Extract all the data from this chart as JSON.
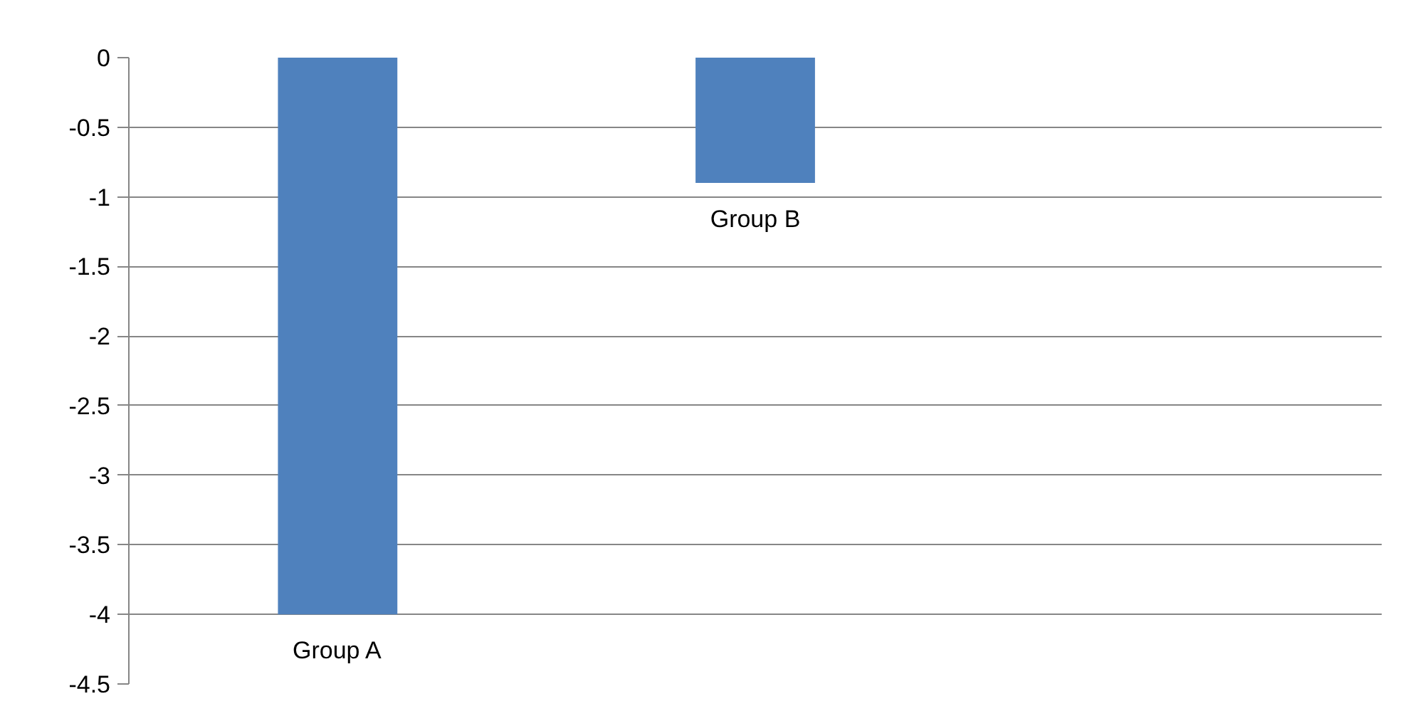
{
  "chart_data": {
    "type": "bar",
    "categories": [
      null,
      null,
      null
    ],
    "values": [
      -4,
      -0.9,
      null
    ],
    "color": "#4f81bd",
    "ylim": [
      -4.5,
      0
    ],
    "yticks": [
      0,
      -0.5,
      -1,
      -1.5,
      -2,
      -2.5,
      -3,
      -3.5,
      -4,
      -4.5
    ],
    "grid": "y",
    "tick_labels": "y",
    "annotations": [
      "Group A",
      "Group B"
    ]
  }
}
